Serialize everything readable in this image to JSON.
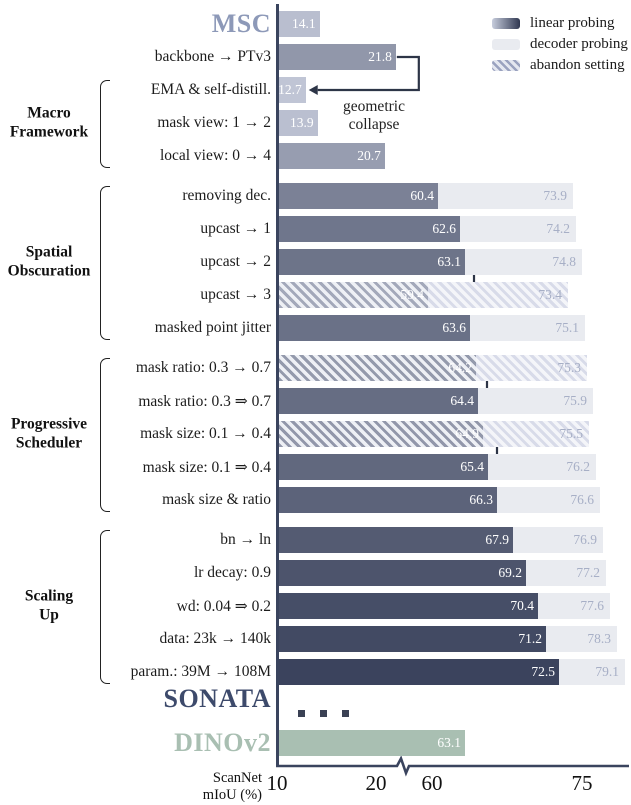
{
  "legend": {
    "items": [
      {
        "label": "linear probing",
        "swatch": "linear-gradient"
      },
      {
        "label": "decoder probing",
        "swatch": "light"
      },
      {
        "label": "abandon setting",
        "swatch": "hatched"
      }
    ]
  },
  "annotation": {
    "line1": "geometric",
    "line2": "collapse"
  },
  "axis_caption": {
    "line1": "ScanNet",
    "line2": "mIoU (%)"
  },
  "colors": {
    "linear_light": "#ced3e2",
    "linear_dark": "#313953",
    "decoder": "#e9ebf0",
    "decoder_text": "#a7afc6",
    "dinov2": "#a9bfb2",
    "axis": "#3a445e",
    "msc_label": "#8d99b8",
    "sonata_label": "#3d4a6b",
    "connector": "#2d3547",
    "dots": "#3a4154"
  },
  "chart_data": {
    "type": "bar",
    "orientation": "horizontal",
    "xlabel": "ScanNet mIoU (%)",
    "x_ticks": [
      10,
      20,
      60,
      75
    ],
    "axis_break_between": [
      20,
      60
    ],
    "series": [
      {
        "name": "linear probing"
      },
      {
        "name": "decoder probing"
      }
    ],
    "rows": [
      {
        "label": "MSC",
        "style": "msc",
        "linear": 14.1,
        "decoder": null,
        "abandon": false,
        "section": "baseline"
      },
      {
        "label": "backbone → PTv3",
        "style": null,
        "linear": 21.8,
        "decoder": null,
        "abandon": false,
        "section": "baseline"
      },
      {
        "label": "EMA & self-distill.",
        "style": null,
        "linear": 12.7,
        "decoder": null,
        "abandon": false,
        "section": "baseline"
      },
      {
        "label": "mask view: 1 → 2",
        "style": null,
        "linear": 13.9,
        "decoder": null,
        "abandon": false,
        "section": "baseline"
      },
      {
        "label": "local view: 0 → 4",
        "style": null,
        "linear": 20.7,
        "decoder": null,
        "abandon": false,
        "section": "baseline"
      },
      {
        "label": "removing dec.",
        "style": null,
        "linear": 60.4,
        "decoder": 73.9,
        "abandon": false,
        "section": "spatial"
      },
      {
        "label": "upcast → 1",
        "style": null,
        "linear": 62.6,
        "decoder": 74.2,
        "abandon": false,
        "section": "spatial"
      },
      {
        "label": "upcast → 2",
        "style": null,
        "linear": 63.1,
        "decoder": 74.8,
        "abandon": false,
        "section": "spatial"
      },
      {
        "label": "upcast → 3",
        "style": null,
        "linear": 59.4,
        "decoder": 73.4,
        "abandon": true,
        "section": "spatial"
      },
      {
        "label": "masked point jitter",
        "style": null,
        "linear": 63.6,
        "decoder": 75.1,
        "abandon": false,
        "section": "spatial"
      },
      {
        "label": "mask ratio: 0.3 → 0.7",
        "style": null,
        "linear": 64.2,
        "decoder": 75.3,
        "abandon": true,
        "section": "progressive"
      },
      {
        "label": "mask ratio: 0.3 ⇒ 0.7",
        "style": null,
        "linear": 64.4,
        "decoder": 75.9,
        "abandon": false,
        "section": "progressive"
      },
      {
        "label": "mask size: 0.1 → 0.4",
        "style": null,
        "linear": 64.9,
        "decoder": 75.5,
        "abandon": true,
        "section": "progressive"
      },
      {
        "label": "mask size: 0.1 ⇒ 0.4",
        "style": null,
        "linear": 65.4,
        "decoder": 76.2,
        "abandon": false,
        "section": "progressive"
      },
      {
        "label": "mask size & ratio",
        "style": null,
        "linear": 66.3,
        "decoder": 76.6,
        "abandon": false,
        "section": "progressive"
      },
      {
        "label": "bn → ln",
        "style": null,
        "linear": 67.9,
        "decoder": 76.9,
        "abandon": false,
        "section": "scaling"
      },
      {
        "label": "lr decay: 0.9",
        "style": null,
        "linear": 69.2,
        "decoder": 77.2,
        "abandon": false,
        "section": "scaling"
      },
      {
        "label": "wd: 0.04 ⇒ 0.2",
        "style": null,
        "linear": 70.4,
        "decoder": 77.6,
        "abandon": false,
        "section": "scaling"
      },
      {
        "label": "data: 23k → 140k",
        "style": null,
        "linear": 71.2,
        "decoder": 78.3,
        "abandon": false,
        "section": "scaling"
      },
      {
        "label": "param.: 39M → 108M",
        "style": null,
        "linear": 72.5,
        "decoder": 79.1,
        "abandon": false,
        "section": "scaling"
      }
    ],
    "footer": {
      "sonata_label": "SONATA",
      "ellipsis_dots": 3,
      "dinov2": {
        "label": "DINOv2",
        "linear": 63.1
      }
    },
    "groups": [
      {
        "label": "Macro\nFramework",
        "start": 2,
        "end": 4
      },
      {
        "label": "Spatial\nObscuration",
        "start": 5,
        "end": 9
      },
      {
        "label": "Progressive\nScheduler",
        "start": 10,
        "end": 14
      },
      {
        "label": "Scaling\nUp",
        "start": 15,
        "end": 19
      }
    ],
    "connectors": [
      {
        "style": "arrow",
        "from_row": 1,
        "to_row": 2,
        "note": "geometric collapse"
      },
      {
        "style": "bracket",
        "from_row": 7,
        "to_row": 8
      },
      {
        "style": "bracket",
        "from_row": 10,
        "to_row": 11
      },
      {
        "style": "bracket",
        "from_row": 12,
        "to_row": 13
      }
    ]
  }
}
